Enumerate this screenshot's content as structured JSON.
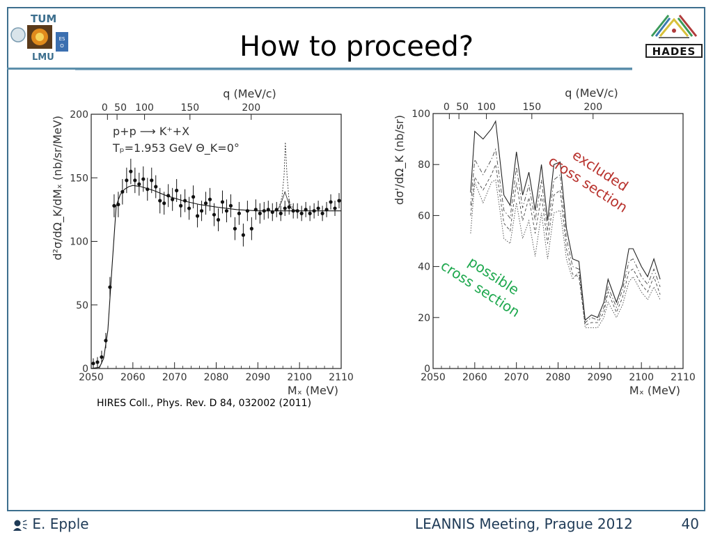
{
  "slide": {
    "title": "How to proceed?",
    "author": "E. Epple",
    "meeting": "LEANNIS Meeting, Prague 2012",
    "page": "40",
    "caption": "HIRES Coll., Phys. Rev. D 84, 032002 (2011)",
    "logos": {
      "left": [
        "TUM",
        "LMU"
      ],
      "right": "HADES"
    },
    "annotations": {
      "excluded": [
        "excluded",
        "cross section"
      ],
      "possible": [
        "possible",
        "cross section"
      ]
    },
    "colors": {
      "frame": "#3d6f8e",
      "excluded": "#b8322d",
      "possible": "#1ea84e",
      "footer_text": "#1f3b57"
    },
    "author_icon": "speaker-icon"
  },
  "chart_data": [
    {
      "type": "scatter",
      "xlabel": "Mₓ (MeV)",
      "ylabel": "d²σ/dΩ_K/dMₓ (nb/sr/MeV)",
      "top_axis_label": "q (MeV/c)",
      "top_ticks": [
        "0",
        "50",
        "100",
        "150",
        "200"
      ],
      "top_ticks_mx": [
        2053.9,
        2056.2,
        2062.8,
        2073.7,
        2088.4
      ],
      "xlim": [
        2050,
        2110
      ],
      "ylim": [
        0,
        200
      ],
      "xticks": [
        2050,
        2060,
        2070,
        2080,
        2090,
        2100,
        2110
      ],
      "yticks": [
        0,
        50,
        100,
        150,
        200
      ],
      "annotation_lines": [
        "p+p ⟶ K⁺+X",
        "Tₚ=1.953 GeV    Θ_K=0°"
      ],
      "points": [
        {
          "x": 2050.5,
          "y": 4,
          "err": 4
        },
        {
          "x": 2051.5,
          "y": 5,
          "err": 4
        },
        {
          "x": 2052.5,
          "y": 9,
          "err": 5
        },
        {
          "x": 2053.5,
          "y": 22,
          "err": 6
        },
        {
          "x": 2054.5,
          "y": 64,
          "err": 8
        },
        {
          "x": 2055.5,
          "y": 128,
          "err": 9
        },
        {
          "x": 2056.5,
          "y": 129,
          "err": 10
        },
        {
          "x": 2057.5,
          "y": 139,
          "err": 10
        },
        {
          "x": 2058.5,
          "y": 148,
          "err": 10
        },
        {
          "x": 2059.5,
          "y": 155,
          "err": 10
        },
        {
          "x": 2060.5,
          "y": 148,
          "err": 10
        },
        {
          "x": 2061.5,
          "y": 145,
          "err": 9
        },
        {
          "x": 2062.5,
          "y": 149,
          "err": 10
        },
        {
          "x": 2063.5,
          "y": 141,
          "err": 9
        },
        {
          "x": 2064.5,
          "y": 148,
          "err": 10
        },
        {
          "x": 2065.5,
          "y": 143,
          "err": 9
        },
        {
          "x": 2066.5,
          "y": 132,
          "err": 10
        },
        {
          "x": 2067.5,
          "y": 130,
          "err": 9
        },
        {
          "x": 2068.5,
          "y": 136,
          "err": 9
        },
        {
          "x": 2069.5,
          "y": 133,
          "err": 9
        },
        {
          "x": 2070.5,
          "y": 140,
          "err": 9
        },
        {
          "x": 2071.5,
          "y": 128,
          "err": 9
        },
        {
          "x": 2072.5,
          "y": 132,
          "err": 9
        },
        {
          "x": 2073.5,
          "y": 126,
          "err": 9
        },
        {
          "x": 2074.5,
          "y": 135,
          "err": 9
        },
        {
          "x": 2075.5,
          "y": 120,
          "err": 9
        },
        {
          "x": 2076.5,
          "y": 124,
          "err": 8
        },
        {
          "x": 2077.5,
          "y": 130,
          "err": 9
        },
        {
          "x": 2078.5,
          "y": 133,
          "err": 9
        },
        {
          "x": 2079.5,
          "y": 121,
          "err": 9
        },
        {
          "x": 2080.5,
          "y": 117,
          "err": 9
        },
        {
          "x": 2081.5,
          "y": 131,
          "err": 9
        },
        {
          "x": 2082.5,
          "y": 124,
          "err": 9
        },
        {
          "x": 2083.5,
          "y": 128,
          "err": 9
        },
        {
          "x": 2084.5,
          "y": 110,
          "err": 9
        },
        {
          "x": 2085.5,
          "y": 122,
          "err": 9
        },
        {
          "x": 2086.5,
          "y": 105,
          "err": 9
        },
        {
          "x": 2087.5,
          "y": 124,
          "err": 8
        },
        {
          "x": 2088.5,
          "y": 110,
          "err": 9
        },
        {
          "x": 2089.5,
          "y": 125,
          "err": 8
        },
        {
          "x": 2090.5,
          "y": 122,
          "err": 8
        },
        {
          "x": 2091.5,
          "y": 124,
          "err": 7
        },
        {
          "x": 2092.5,
          "y": 125,
          "err": 7
        },
        {
          "x": 2093.5,
          "y": 123,
          "err": 7
        },
        {
          "x": 2094.5,
          "y": 125,
          "err": 6
        },
        {
          "x": 2095.5,
          "y": 122,
          "err": 6
        },
        {
          "x": 2096.5,
          "y": 126,
          "err": 6
        },
        {
          "x": 2097.5,
          "y": 127,
          "err": 6
        },
        {
          "x": 2098.5,
          "y": 124,
          "err": 6
        },
        {
          "x": 2099.5,
          "y": 124,
          "err": 6
        },
        {
          "x": 2100.5,
          "y": 122,
          "err": 6
        },
        {
          "x": 2101.5,
          "y": 125,
          "err": 6
        },
        {
          "x": 2102.5,
          "y": 122,
          "err": 6
        },
        {
          "x": 2103.5,
          "y": 124,
          "err": 6
        },
        {
          "x": 2104.5,
          "y": 126,
          "err": 6
        },
        {
          "x": 2105.5,
          "y": 122,
          "err": 6
        },
        {
          "x": 2106.5,
          "y": 125,
          "err": 6
        },
        {
          "x": 2107.5,
          "y": 131,
          "err": 6
        },
        {
          "x": 2108.5,
          "y": 126,
          "err": 6
        },
        {
          "x": 2109.5,
          "y": 132,
          "err": 6
        }
      ],
      "fit_curve": {
        "x": [
          2050,
          2052,
          2053,
          2054,
          2055,
          2056,
          2057,
          2058,
          2059,
          2060,
          2062,
          2065,
          2068,
          2072,
          2076,
          2080,
          2085,
          2090,
          2095,
          2100,
          2105,
          2110
        ],
        "y": [
          0,
          1,
          8,
          30,
          80,
          128,
          137,
          141,
          143,
          144,
          143,
          140,
          136,
          132,
          129,
          127,
          125,
          124,
          124,
          124,
          124,
          124
        ]
      },
      "peak_curves": [
        {
          "x": [
            2094,
            2095,
            2095.8,
            2096.3,
            2096.6,
            2097,
            2097.5,
            2098.5,
            2100
          ],
          "y": [
            124,
            126,
            135,
            152,
            178,
            152,
            132,
            125,
            124
          ]
        },
        {
          "x": [
            2094,
            2095,
            2095.8,
            2096.5,
            2097.2,
            2098,
            2099,
            2100
          ],
          "y": [
            124,
            126,
            132,
            139,
            132,
            126,
            124,
            124
          ]
        }
      ]
    },
    {
      "type": "line",
      "xlabel": "Mₓ (MeV)",
      "ylabel": "dσ'/dΩ_K (nb/sr)",
      "top_axis_label": "q (MeV/c)",
      "top_ticks": [
        "0",
        "50",
        "100",
        "150",
        "200"
      ],
      "top_ticks_mx": [
        2053.9,
        2056.2,
        2062.8,
        2073.7,
        2088.4
      ],
      "xlim": [
        2050,
        2110
      ],
      "ylim": [
        0,
        100
      ],
      "xticks": [
        2050,
        2060,
        2070,
        2080,
        2090,
        2100,
        2110
      ],
      "yticks": [
        0,
        20,
        40,
        60,
        80,
        100
      ],
      "x": [
        2059,
        2060,
        2062,
        2064,
        2065,
        2067,
        2068.5,
        2070,
        2071.5,
        2073,
        2074.5,
        2076,
        2077.5,
        2079,
        2080.5,
        2082,
        2083.5,
        2085,
        2086.5,
        2088,
        2089.5,
        2091,
        2092,
        2094,
        2095.5,
        2097,
        2098,
        2100,
        2101.5,
        2103,
        2104.5
      ],
      "series": [
        {
          "style": "solid",
          "values": [
            69,
            93,
            90,
            94,
            97,
            68,
            64,
            85,
            68,
            77,
            62,
            80,
            58,
            80,
            81,
            55,
            43,
            42,
            19,
            21,
            20,
            26,
            35,
            26,
            33,
            47,
            47,
            40,
            36,
            43,
            35
          ]
        },
        {
          "style": "dashdot",
          "values": [
            64,
            82,
            76,
            82,
            86,
            62,
            59,
            79,
            63,
            72,
            58,
            74,
            54,
            74,
            76,
            51,
            40,
            39,
            18,
            20,
            19,
            24,
            32,
            24,
            31,
            42,
            43,
            36,
            33,
            39,
            32
          ]
        },
        {
          "style": "dashed",
          "values": [
            60,
            75,
            70,
            76,
            80,
            57,
            54,
            73,
            58,
            67,
            53,
            68,
            49,
            68,
            70,
            47,
            37,
            36,
            17,
            18,
            18,
            22,
            30,
            22,
            28,
            38,
            39,
            33,
            30,
            36,
            29
          ]
        },
        {
          "style": "dotted",
          "values": [
            53,
            73,
            65,
            73,
            74,
            51,
            49,
            65,
            51,
            58,
            44,
            61,
            43,
            61,
            62,
            43,
            35,
            38,
            16,
            16,
            16,
            20,
            26,
            20,
            25,
            34,
            36,
            30,
            27,
            32,
            27
          ]
        }
      ]
    }
  ]
}
